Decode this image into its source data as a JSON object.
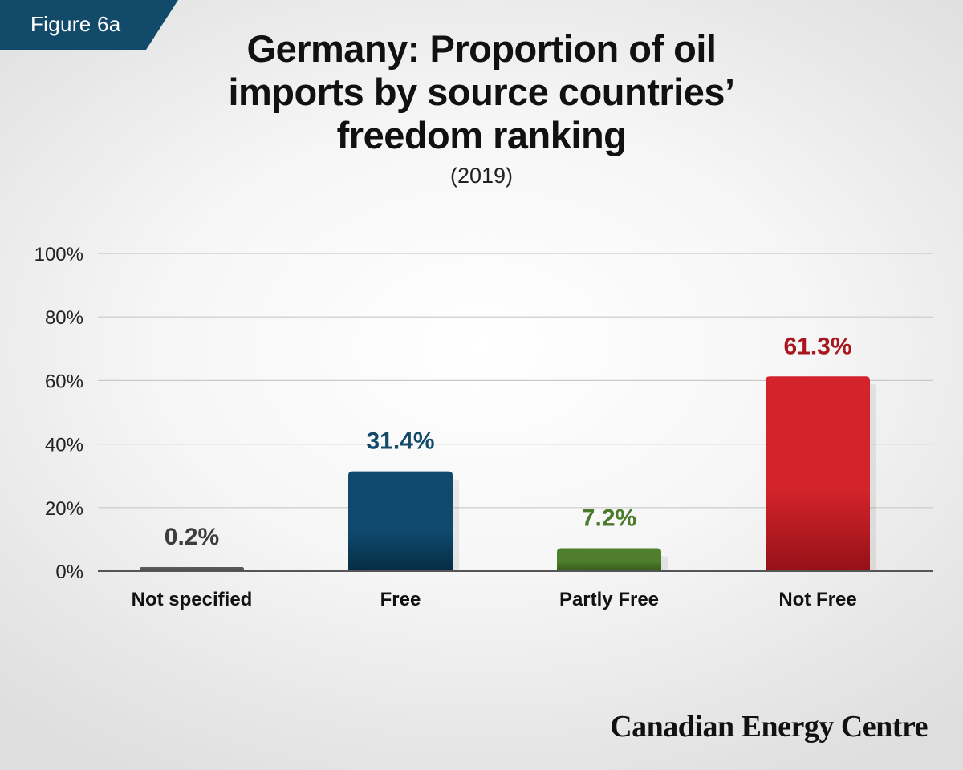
{
  "figure_label": "Figure 6a",
  "header": {
    "title_lines": [
      "Germany: Proportion of oil",
      "imports by source countries’",
      "freedom ranking"
    ],
    "subtitle": "(2019)"
  },
  "brand": "Canadian Energy Centre",
  "chart_data": {
    "type": "bar",
    "title": "Germany: Proportion of oil imports by source countries’ freedom ranking",
    "subtitle": "(2019)",
    "categories": [
      "Not specified",
      "Free",
      "Partly Free",
      "Not Free"
    ],
    "values": [
      0.2,
      31.4,
      7.2,
      61.3
    ],
    "data_labels": [
      "0.2%",
      "31.4%",
      "7.2%",
      "61.3%"
    ],
    "unit": "%",
    "ylim": [
      0,
      100
    ],
    "yticks": [
      0,
      20,
      40,
      60,
      80,
      100
    ],
    "ytick_labels": [
      "0%",
      "20%",
      "40%",
      "60%",
      "80%",
      "100%"
    ],
    "grid": true,
    "legend": "none",
    "colors": {
      "Not specified": {
        "top": "#5a5a5a",
        "bottom": "#3a3a3a",
        "label": "#3d3d3d"
      },
      "Free": {
        "top": "#0f4a6e",
        "bottom": "#062d45",
        "label": "#124b6a"
      },
      "Partly Free": {
        "top": "#4f7e2c",
        "bottom": "#36591c",
        "label": "#4a7a2a"
      },
      "Not Free": {
        "top": "#d4232b",
        "bottom": "#951117",
        "label": "#a8171d"
      }
    }
  }
}
